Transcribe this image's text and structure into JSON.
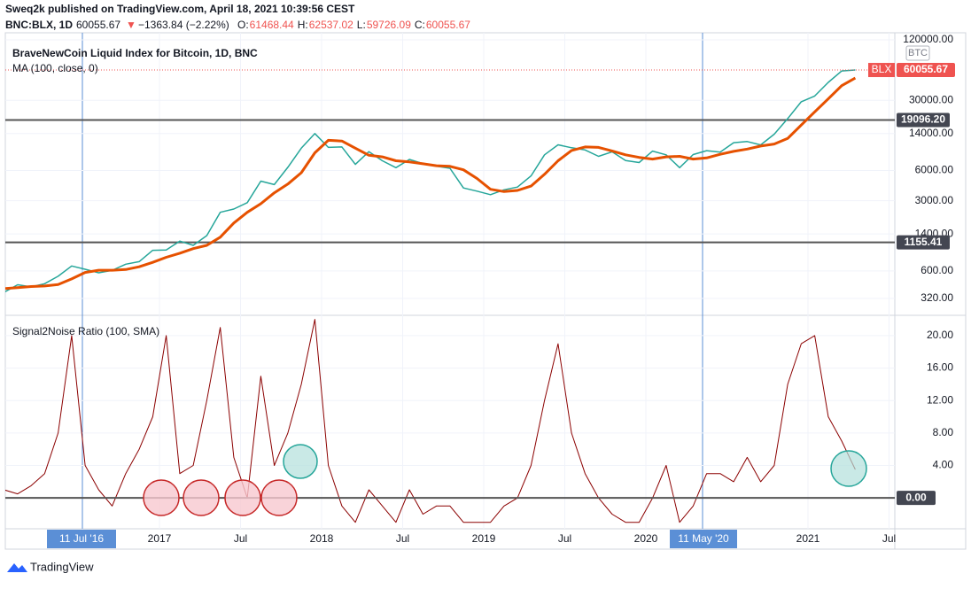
{
  "header": {
    "author_line": "Sweq2k published on TradingView.com, April 18, 2021 10:39:56 CEST",
    "symbol": "BNC:BLX, 1D",
    "price": "60055.67",
    "arrow": "▼",
    "change": "−1363.84 (−2.22%)",
    "ohlc": [
      {
        "key": "O:",
        "value": "61468.44"
      },
      {
        "key": "H:",
        "value": "62537.02"
      },
      {
        "key": "L:",
        "value": "59726.09"
      },
      {
        "key": "C:",
        "value": "60055.67"
      }
    ]
  },
  "footer": {
    "brand": "TradingView"
  },
  "crosshair_labels": [
    "11 Jul '16",
    "11 May '20"
  ],
  "chart_data": [
    {
      "type": "line",
      "title": "BraveNewCoin Liquid Index for Bitcoin, 1D, BNC",
      "log_scale": true,
      "currency": "BTC",
      "x": [
        "2016-01",
        "2016-02",
        "2016-03",
        "2016-04",
        "2016-05",
        "2016-06",
        "2016-07",
        "2016-08",
        "2016-09",
        "2016-10",
        "2016-11",
        "2016-12",
        "2017-01",
        "2017-02",
        "2017-03",
        "2017-04",
        "2017-05",
        "2017-06",
        "2017-07",
        "2017-08",
        "2017-09",
        "2017-10",
        "2017-11",
        "2017-12",
        "2018-01",
        "2018-02",
        "2018-03",
        "2018-04",
        "2018-05",
        "2018-06",
        "2018-07",
        "2018-08",
        "2018-09",
        "2018-10",
        "2018-11",
        "2018-12",
        "2019-01",
        "2019-02",
        "2019-03",
        "2019-04",
        "2019-05",
        "2019-06",
        "2019-07",
        "2019-08",
        "2019-09",
        "2019-10",
        "2019-11",
        "2019-12",
        "2020-01",
        "2020-02",
        "2020-03",
        "2020-04",
        "2020-05",
        "2020-06",
        "2020-07",
        "2020-08",
        "2020-09",
        "2020-10",
        "2020-11",
        "2020-12",
        "2021-01",
        "2021-02",
        "2021-03",
        "2021-04"
      ],
      "series": [
        {
          "name": "BLX",
          "color": "#26a69a",
          "values": [
            368,
            437,
            416,
            448,
            531,
            673,
            624,
            575,
            609,
            700,
            742,
            963,
            970,
            1190,
            1080,
            1350,
            2300,
            2480,
            2870,
            4700,
            4340,
            6450,
            10000,
            14000,
            10200,
            10300,
            6900,
            9240,
            7500,
            6400,
            7730,
            7030,
            6630,
            6310,
            4020,
            3740,
            3450,
            3850,
            4100,
            5300,
            8600,
            10800,
            10100,
            9600,
            8300,
            9200,
            7550,
            7200,
            9350,
            8600,
            6400,
            8650,
            9450,
            9140,
            11350,
            11650,
            10780,
            13800,
            19700,
            29000,
            33100,
            45200,
            58800,
            60056
          ]
        },
        {
          "name": "MA (100, close, 0)",
          "color": "#e65100",
          "values": [
            400,
            410,
            420,
            425,
            440,
            500,
            580,
            610,
            610,
            620,
            660,
            730,
            820,
            900,
            1000,
            1080,
            1300,
            1800,
            2300,
            2800,
            3600,
            4400,
            5700,
            9000,
            12000,
            11800,
            10000,
            8500,
            8200,
            7500,
            7300,
            7000,
            6700,
            6600,
            6100,
            5000,
            3900,
            3700,
            3800,
            4200,
            5500,
            7500,
            9500,
            10300,
            10200,
            9400,
            8600,
            8100,
            7800,
            8200,
            8300,
            7800,
            8000,
            8700,
            9300,
            9800,
            10500,
            11000,
            12500,
            17000,
            23000,
            31000,
            42000,
            50000
          ]
        }
      ],
      "last": {
        "name": "BLX",
        "value": 60055.67,
        "label": "60055.67"
      },
      "hlines": [
        {
          "value": 19096.2,
          "label": "19096.20"
        },
        {
          "value": 1155.41,
          "label": "1155.41"
        }
      ],
      "ylim": [
        217,
        141000
      ],
      "yticks": [
        {
          "value": 120000,
          "label": "120000.00"
        },
        {
          "value": 30000,
          "label": "30000.00"
        },
        {
          "value": 14000,
          "label": "14000.00"
        },
        {
          "value": 6000,
          "label": "6000.00"
        },
        {
          "value": 3000,
          "label": "3000.00"
        },
        {
          "value": 1400,
          "label": "1400.00"
        },
        {
          "value": 600,
          "label": "600.00"
        },
        {
          "value": 320,
          "label": "320.00"
        }
      ]
    },
    {
      "type": "line",
      "title": "Signal2Noise Ratio (100, SMA)",
      "series": [
        {
          "name": "Signal2Noise Ratio",
          "color": "#8b0000",
          "values": [
            1,
            0.5,
            1.5,
            3,
            8,
            20,
            4,
            1,
            -1,
            3,
            6,
            10,
            20,
            3,
            4,
            12,
            21,
            5,
            0,
            15,
            4,
            8,
            14,
            22,
            4,
            -1,
            -3,
            1,
            -1,
            -3,
            1,
            -2,
            -1,
            -1,
            -3,
            -3,
            -3,
            -1,
            0,
            4,
            12,
            19,
            8,
            3,
            0,
            -2,
            -3,
            -3,
            0,
            4,
            -3,
            -1,
            3,
            3,
            2,
            5,
            2,
            4,
            14,
            19,
            20,
            10,
            7,
            3.5
          ]
        }
      ],
      "zero_line": {
        "value": 0,
        "label": "0.00"
      },
      "ylim": [
        -3.8,
        22.5
      ],
      "yticks": [
        {
          "value": 4,
          "label": "4.00"
        },
        {
          "value": 8,
          "label": "8.00"
        },
        {
          "value": 12,
          "label": "12.00"
        },
        {
          "value": 16,
          "label": "16.00"
        },
        {
          "value": 20,
          "label": "20.00"
        }
      ],
      "xticks": [
        {
          "value": "2017-01",
          "label": "2017"
        },
        {
          "value": "2017-07",
          "label": "Jul"
        },
        {
          "value": "2018-01",
          "label": "2018"
        },
        {
          "value": "2018-07",
          "label": "Jul"
        },
        {
          "value": "2019-01",
          "label": "2019"
        },
        {
          "value": "2019-07",
          "label": "Jul"
        },
        {
          "value": "2020-01",
          "label": "2020"
        },
        {
          "value": "2021-01",
          "label": "2021"
        },
        {
          "value": "2021-07",
          "label": "Jul"
        }
      ]
    }
  ]
}
